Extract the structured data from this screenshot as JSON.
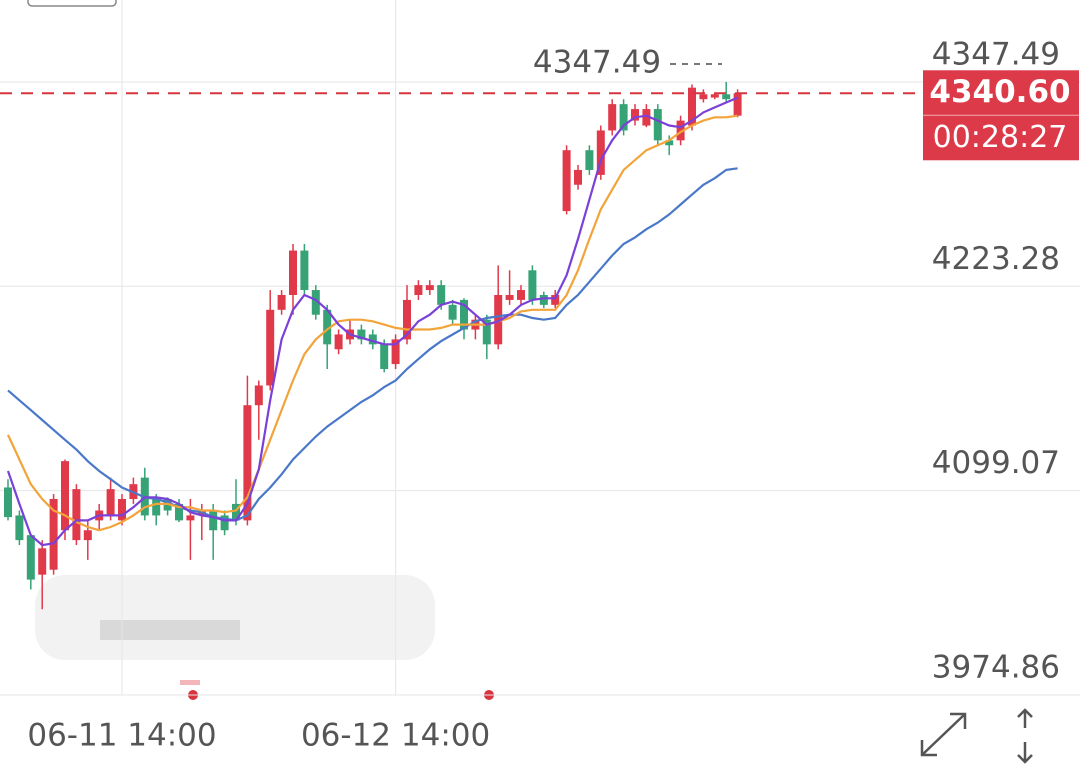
{
  "chart_data": {
    "type": "candlestick",
    "categories": [
      null,
      null,
      null,
      null,
      null,
      null,
      null,
      null,
      null,
      null,
      "06-11 14:00",
      null,
      null,
      null,
      null,
      null,
      null,
      null,
      null,
      null,
      null,
      null,
      null,
      null,
      null,
      null,
      null,
      null,
      null,
      null,
      null,
      null,
      null,
      null,
      "06-12 14:00",
      null,
      null,
      null,
      null,
      null,
      null,
      null,
      null,
      null,
      null,
      null,
      null,
      null,
      null,
      null,
      null,
      null,
      null,
      null,
      null,
      null,
      null,
      null,
      null,
      null,
      null,
      null,
      null,
      null,
      null
    ],
    "open": [
      4101,
      4084,
      4072,
      4048,
      4051,
      4075,
      4069,
      4069,
      4081,
      4084,
      4081,
      4094,
      4107,
      4094,
      4094,
      4091,
      4081,
      4084,
      4087,
      4084,
      4091,
      4081,
      4151,
      4163,
      4209,
      4218,
      4245,
      4221,
      4209,
      4185,
      4191,
      4197,
      4194,
      4188,
      4176,
      4191,
      4218,
      4221,
      4224,
      4212,
      4215,
      4197,
      4203,
      4188,
      4215,
      4215,
      4233,
      4218,
      4212,
      4269,
      4285,
      4306,
      4291,
      4318,
      4334,
      4324,
      4321,
      4331,
      4312,
      4312,
      4321,
      4337,
      4338,
      4340,
      4327
    ],
    "high": [
      4106,
      4087,
      4072,
      4069,
      4097,
      4118,
      4103,
      4081,
      4091,
      4107,
      4097,
      4107,
      4113,
      4097,
      4095,
      4094,
      4094,
      4091,
      4091,
      4087,
      4106,
      4169,
      4166,
      4221,
      4221,
      4249,
      4249,
      4224,
      4212,
      4197,
      4203,
      4200,
      4197,
      4191,
      4194,
      4224,
      4227,
      4227,
      4227,
      4215,
      4216,
      4206,
      4206,
      4236,
      4233,
      4224,
      4236,
      4220,
      4221,
      4309,
      4297,
      4309,
      4321,
      4337,
      4337,
      4334,
      4334,
      4334,
      4315,
      4327,
      4346,
      4343,
      4341,
      4347.49,
      4343
    ],
    "low": [
      4081,
      4066,
      4039,
      4027,
      4048,
      4069,
      4066,
      4057,
      4075,
      4081,
      4078,
      4091,
      4081,
      4078,
      4084,
      4080,
      4057,
      4069,
      4057,
      4072,
      4078,
      4078,
      4130,
      4160,
      4206,
      4206,
      4218,
      4203,
      4173,
      4182,
      4188,
      4188,
      4185,
      4171,
      4173,
      4188,
      4215,
      4218,
      4209,
      4200,
      4191,
      4191,
      4179,
      4185,
      4212,
      4212,
      4212,
      4210,
      4210,
      4267,
      4282,
      4291,
      4288,
      4315,
      4315,
      4321,
      4320,
      4309,
      4303,
      4309,
      4318,
      4335,
      4337,
      4335,
      4326
    ],
    "close": [
      4083,
      4069,
      4045,
      4064,
      4094,
      4117,
      4100,
      4075,
      4087,
      4100,
      4094,
      4103,
      4084,
      4084,
      4087,
      4081,
      4084,
      4087,
      4075,
      4075,
      4081,
      4151,
      4163,
      4209,
      4218,
      4245,
      4221,
      4206,
      4188,
      4194,
      4197,
      4191,
      4188,
      4173,
      4191,
      4215,
      4224,
      4224,
      4212,
      4203,
      4197,
      4203,
      4188,
      4218,
      4218,
      4221,
      4215,
      4212,
      4218,
      4306,
      4294,
      4294,
      4318,
      4334,
      4318,
      4331,
      4331,
      4312,
      4309,
      4324,
      4344,
      4340,
      4340,
      4337,
      4340.6
    ],
    "up_color": "#e0394a",
    "down_color": "#36a275",
    "lines": [
      {
        "color": "#4a78c8",
        "values": [
          4160,
          4154,
          4148,
          4142,
          4136,
          4130,
          4124,
          4117,
          4111,
          4106,
          4101,
          4098,
          4095,
          4094,
          4092,
          4089,
          4087,
          4086,
          4083,
          4082,
          4081,
          4084,
          4094,
          4101,
          4109,
          4118,
          4125,
          4132,
          4138,
          4143,
          4148,
          4153,
          4157,
          4162,
          4166,
          4173,
          4179,
          4185,
          4190,
          4194,
          4198,
          4202,
          4204,
          4205,
          4206,
          4206,
          4204,
          4203,
          4204,
          4212,
          4218,
          4226,
          4234,
          4242,
          4249,
          4253,
          4258,
          4262,
          4267,
          4273,
          4279,
          4285,
          4289,
          4294,
          4295
        ]
      },
      {
        "color": "#f2a43a",
        "values": [
          4133,
          4118,
          4103,
          4094,
          4087,
          4084,
          4080,
          4077,
          4075,
          4077,
          4080,
          4084,
          4089,
          4091,
          4091,
          4089,
          4089,
          4087,
          4087,
          4086,
          4087,
          4095,
          4112,
          4130,
          4148,
          4166,
          4182,
          4191,
          4197,
          4202,
          4203,
          4203,
          4202,
          4200,
          4198,
          4197,
          4197,
          4197,
          4198,
          4200,
          4200,
          4200,
          4200,
          4202,
          4204,
          4208,
          4209,
          4209,
          4209,
          4218,
          4233,
          4252,
          4270,
          4282,
          4294,
          4300,
          4306,
          4309,
          4312,
          4317,
          4321,
          4324,
          4326,
          4326,
          4327
        ]
      },
      {
        "color": "#7b40d8",
        "values": [
          4111,
          4091,
          4072,
          4066,
          4067,
          4075,
          4081,
          4081,
          4084,
          4084,
          4084,
          4089,
          4095,
          4095,
          4094,
          4091,
          4086,
          4084,
          4083,
          4081,
          4081,
          4091,
          4112,
          4154,
          4191,
          4209,
          4218,
          4215,
          4209,
          4200,
          4194,
          4192,
          4190,
          4188,
          4188,
          4194,
          4202,
          4206,
          4212,
          4214,
          4212,
          4206,
          4200,
          4202,
          4206,
          4212,
          4215,
          4216,
          4216,
          4230,
          4252,
          4276,
          4300,
          4312,
          4321,
          4326,
          4327,
          4324,
          4321,
          4320,
          4324,
          4329,
          4332,
          4335,
          4338
        ]
      }
    ],
    "ylim": [
      3974.86,
      4397.3
    ],
    "yticks": [
      3974.86,
      4099.07,
      4223.28,
      4347.49
    ],
    "grid": true,
    "high_marker": 4347.49,
    "last_price": {
      "value": 4340.6,
      "label": "4340.60"
    },
    "countdown": "00:28:27"
  }
}
